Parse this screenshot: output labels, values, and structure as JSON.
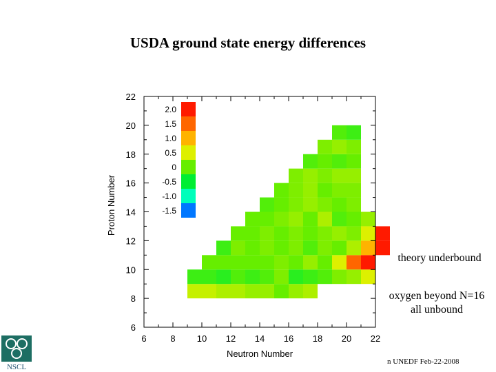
{
  "title": "USDA ground state energy differences",
  "notes": {
    "underbound": "theory underbound",
    "oxygen_line1": "oxygen beyond N=16",
    "oxygen_line2": "all unbound"
  },
  "footer": "n UNEDF Feb-22-2008",
  "logo_text": "NSCL",
  "chart_data": {
    "type": "heatmap",
    "xlabel": "Neutron Number",
    "ylabel": "Proton Number",
    "xlim": [
      6,
      22
    ],
    "ylim": [
      6,
      22
    ],
    "xticks": [
      6,
      8,
      10,
      12,
      14,
      16,
      18,
      20,
      22
    ],
    "yticks": [
      6,
      8,
      10,
      12,
      14,
      16,
      18,
      20,
      22
    ],
    "legend": {
      "placement": "top-left",
      "entries": [
        {
          "label": "2.0",
          "color": "#ff1a00"
        },
        {
          "label": "1.5",
          "color": "#ff6600"
        },
        {
          "label": "1.0",
          "color": "#ffb300"
        },
        {
          "label": "0.5",
          "color": "#ddf000"
        },
        {
          "label": "0",
          "color": "#66ee00"
        },
        {
          "label": "-0.5",
          "color": "#00ee33"
        },
        {
          "label": "-1.0",
          "color": "#00ffbb"
        },
        {
          "label": "-1.5",
          "color": "#0077ff"
        }
      ]
    },
    "rows": [
      {
        "z": 8,
        "n_start": 9,
        "values": [
          0.4,
          0.4,
          0.3,
          0.3,
          0.2,
          0.2,
          0.0,
          0.2,
          0.3
        ]
      },
      {
        "z": 9,
        "n_start": 9,
        "values": [
          -0.2,
          -0.2,
          -0.3,
          -0.1,
          -0.2,
          -0.1,
          0.1,
          -0.3,
          -0.2,
          -0.1,
          0.1,
          0.2,
          0.5
        ]
      },
      {
        "z": 10,
        "n_start": 10,
        "values": [
          0.0,
          0.0,
          0.0,
          0.0,
          0.0,
          0.1,
          0.0,
          0.2,
          0.0,
          0.5,
          1.5,
          2.0
        ]
      },
      {
        "z": 11,
        "n_start": 11,
        "values": [
          -0.2,
          0.1,
          0.0,
          0.1,
          0.0,
          0.1,
          -0.1,
          0.1,
          0.0,
          0.3,
          1.0,
          2.0
        ]
      },
      {
        "z": 12,
        "n_start": 12,
        "values": [
          0.0,
          0.0,
          0.1,
          0.0,
          0.1,
          0.0,
          0.1,
          0.2,
          0.1,
          0.5,
          2.0
        ]
      },
      {
        "z": 13,
        "n_start": 13,
        "values": [
          0.0,
          0.0,
          0.1,
          0.2,
          0.0,
          0.3,
          -0.1,
          0.0,
          0.2
        ]
      },
      {
        "z": 14,
        "n_start": 14,
        "values": [
          -0.1,
          0.0,
          0.1,
          0.2,
          0.1,
          0.0,
          0.1
        ]
      },
      {
        "z": 15,
        "n_start": 15,
        "values": [
          0.0,
          0.1,
          0.2,
          0.0,
          0.1,
          0.1
        ]
      },
      {
        "z": 16,
        "n_start": 16,
        "values": [
          0.1,
          0.2,
          0.1,
          0.2,
          0.2
        ]
      },
      {
        "z": 17,
        "n_start": 17,
        "values": [
          -0.1,
          0.0,
          -0.1,
          0.0
        ]
      },
      {
        "z": 18,
        "n_start": 18,
        "values": [
          0.1,
          0.2,
          0.1
        ]
      },
      {
        "z": 19,
        "n_start": 19,
        "values": [
          -0.1,
          -0.2
        ]
      }
    ]
  }
}
